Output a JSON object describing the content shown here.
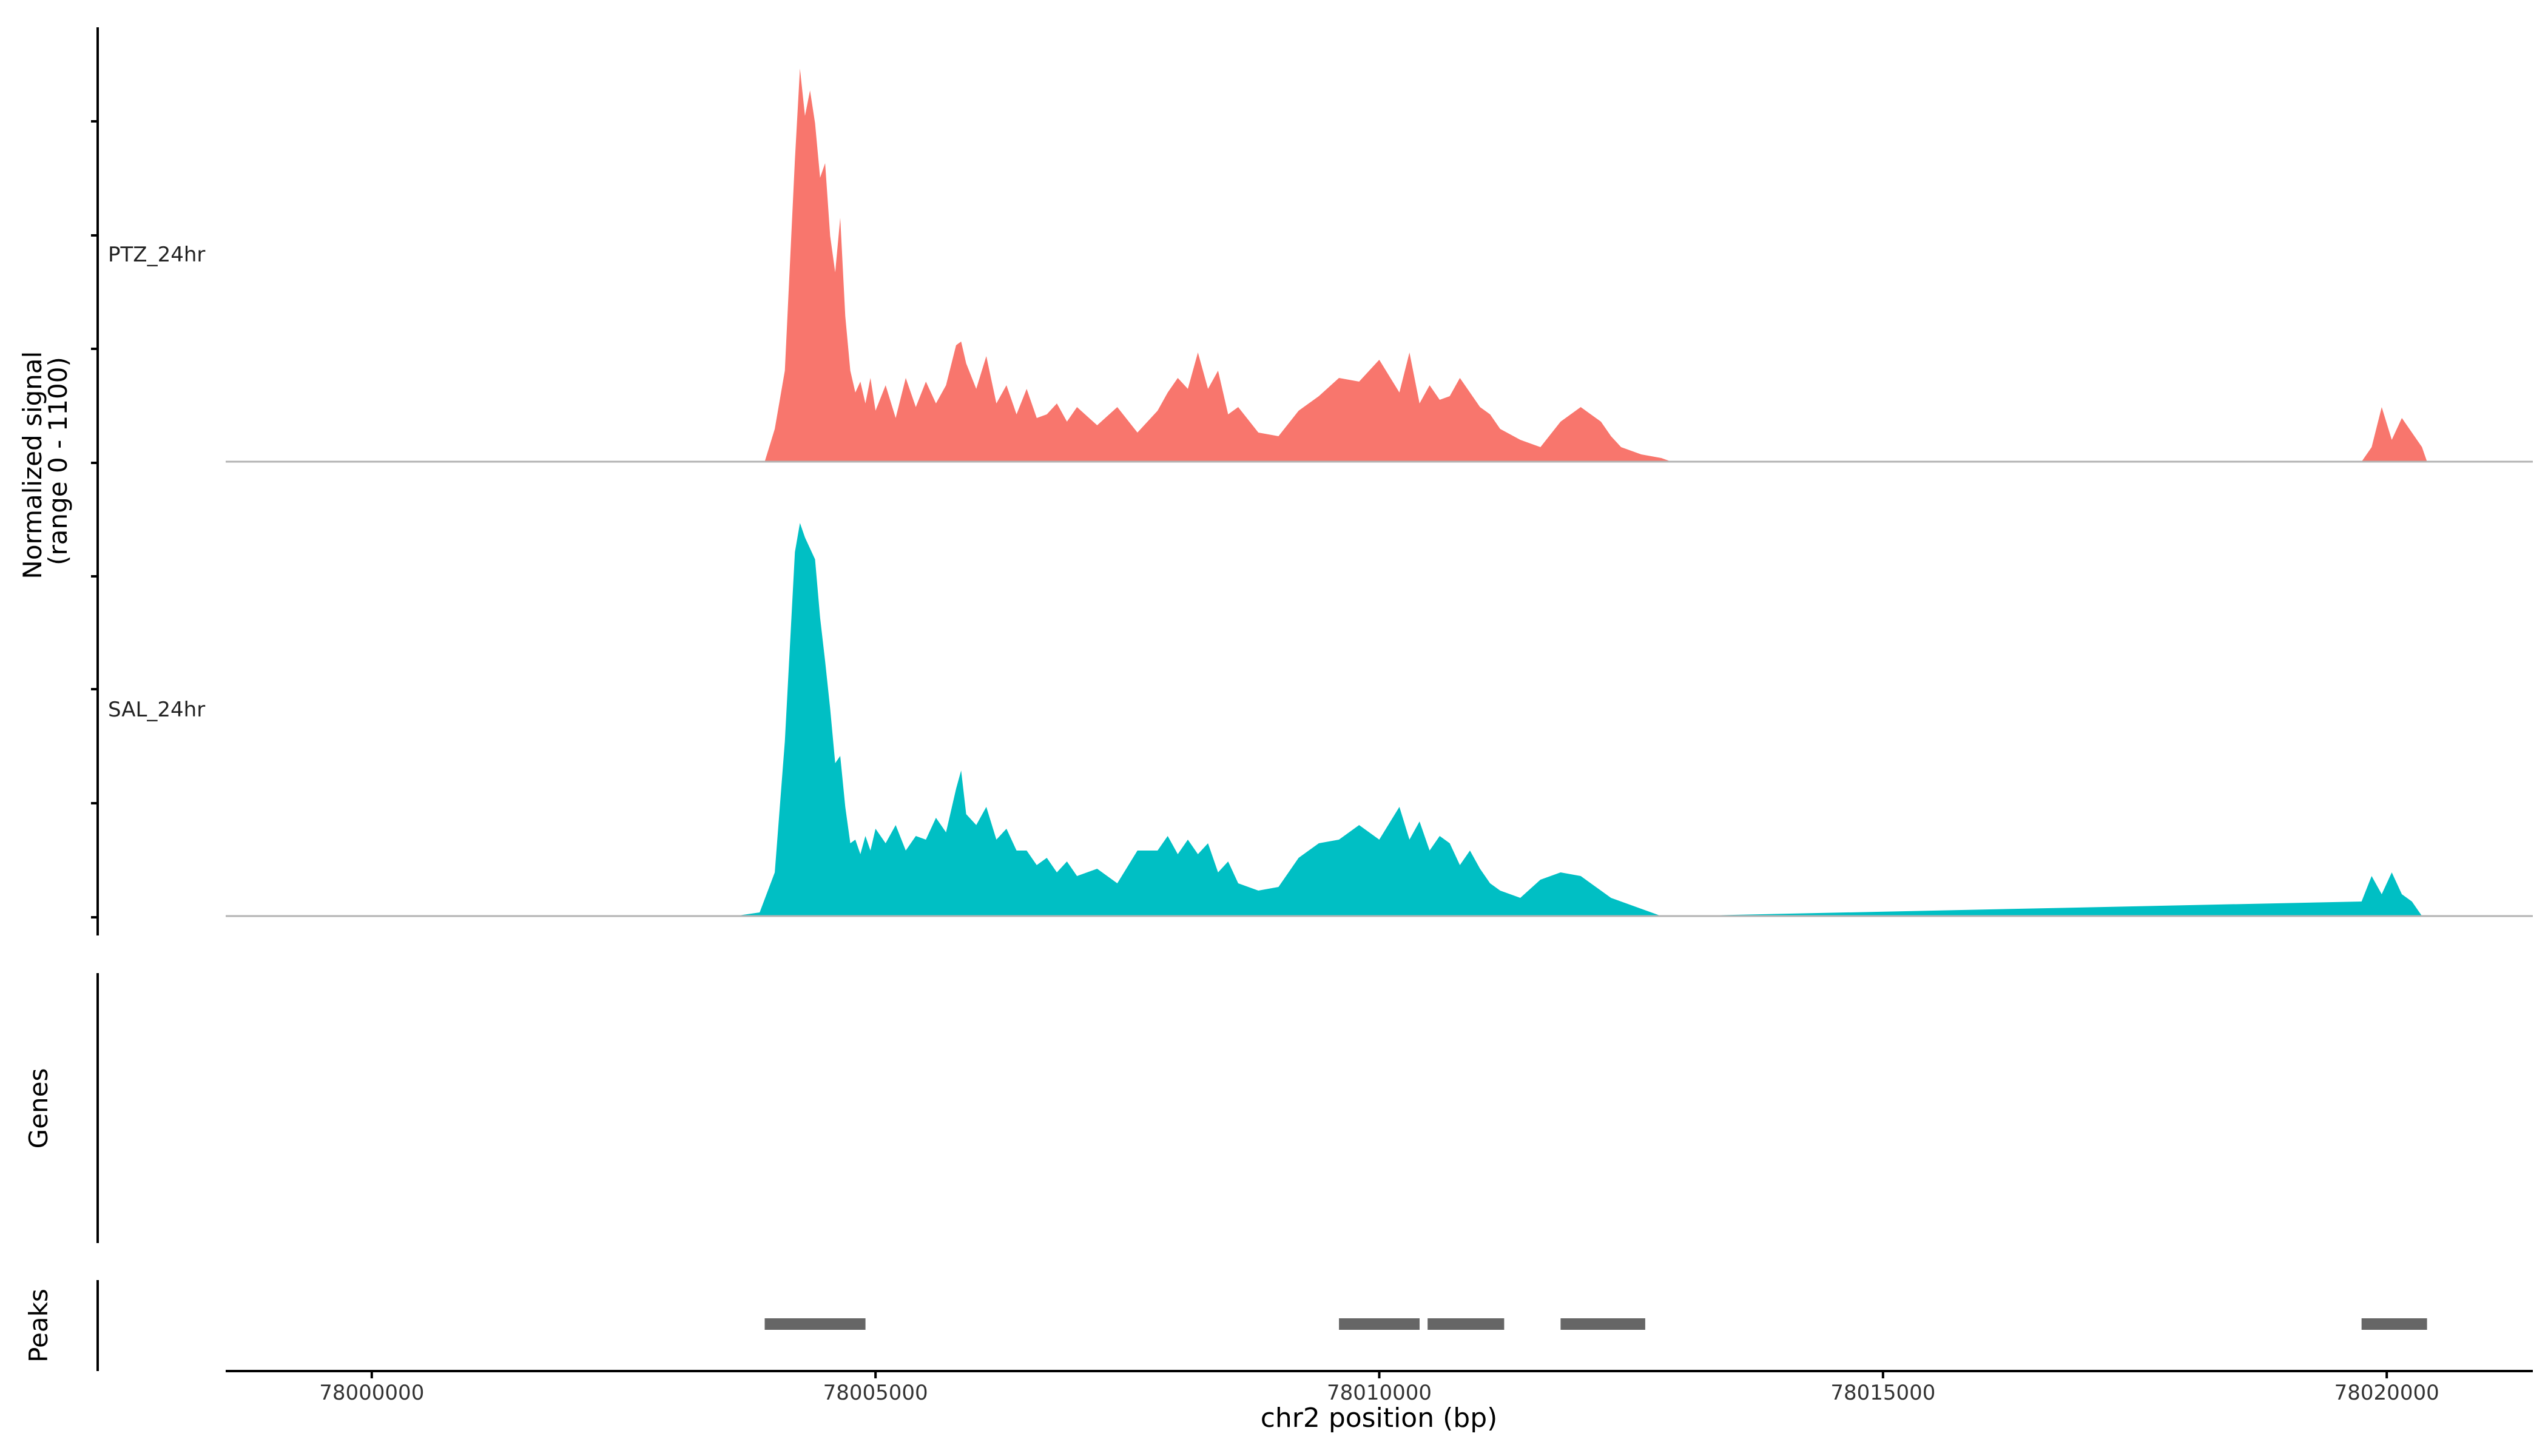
{
  "chart_data": {
    "type": "area",
    "title": "",
    "ylabel_line1": "Normalized signal",
    "ylabel_line2": "(range 0 - 1100)",
    "xlabel": "chr2 position (bp)",
    "xlim": [
      77998550,
      78021450
    ],
    "ylim": [
      0,
      1100
    ],
    "x_ticks": [
      78000000,
      78005000,
      78010000,
      78015000,
      78020000
    ],
    "x_tick_labels": [
      "78000000",
      "78005000",
      "78010000",
      "78015000",
      "78020000"
    ],
    "grid": false,
    "legend": "none",
    "series": [
      {
        "name": "PTZ_24hr",
        "color": "#F8766D",
        "x": [
          78003900,
          78004000,
          78004100,
          78004200,
          78004250,
          78004300,
          78004350,
          78004400,
          78004450,
          78004500,
          78004550,
          78004600,
          78004650,
          78004700,
          78004750,
          78004800,
          78004850,
          78004900,
          78004950,
          78005000,
          78005100,
          78005200,
          78005300,
          78005400,
          78005500,
          78005600,
          78005700,
          78005800,
          78005850,
          78005900,
          78006000,
          78006100,
          78006200,
          78006300,
          78006400,
          78006500,
          78006600,
          78006700,
          78006800,
          78006900,
          78007000,
          78007200,
          78007400,
          78007600,
          78007800,
          78007900,
          78008000,
          78008100,
          78008200,
          78008300,
          78008400,
          78008500,
          78008600,
          78008800,
          78009000,
          78009200,
          78009400,
          78009600,
          78009800,
          78010000,
          78010200,
          78010300,
          78010400,
          78010500,
          78010600,
          78010700,
          78010800,
          78010900,
          78011000,
          78011100,
          78011200,
          78011400,
          78011600,
          78011800,
          78012000,
          78012100,
          78012200,
          78012300,
          78012400,
          78012600,
          78012800,
          78012900,
          78019750,
          78019850,
          78019950,
          78020050,
          78020150,
          78020250,
          78020350,
          78020400
        ],
        "values": [
          0,
          90,
          250,
          830,
          1080,
          950,
          1020,
          930,
          780,
          820,
          620,
          520,
          670,
          400,
          250,
          190,
          220,
          160,
          230,
          140,
          210,
          120,
          230,
          150,
          220,
          160,
          210,
          320,
          330,
          270,
          200,
          290,
          160,
          210,
          130,
          200,
          120,
          130,
          160,
          110,
          150,
          100,
          150,
          80,
          140,
          190,
          230,
          200,
          300,
          200,
          250,
          130,
          150,
          80,
          70,
          140,
          180,
          230,
          220,
          280,
          190,
          300,
          160,
          210,
          170,
          180,
          230,
          190,
          150,
          130,
          90,
          60,
          40,
          110,
          150,
          130,
          110,
          70,
          40,
          20,
          10,
          0,
          0,
          40,
          150,
          60,
          120,
          80,
          40,
          0
        ]
      },
      {
        "name": "SAL_24hr",
        "color": "#00BFC4",
        "x": [
          78003600,
          78003850,
          78004000,
          78004100,
          78004200,
          78004250,
          78004300,
          78004350,
          78004400,
          78004450,
          78004500,
          78004550,
          78004600,
          78004650,
          78004700,
          78004750,
          78004800,
          78004850,
          78004900,
          78004950,
          78005000,
          78005100,
          78005200,
          78005300,
          78005400,
          78005500,
          78005600,
          78005700,
          78005800,
          78005850,
          78005900,
          78006000,
          78006100,
          78006200,
          78006300,
          78006400,
          78006500,
          78006600,
          78006700,
          78006800,
          78006900,
          78007000,
          78007200,
          78007400,
          78007600,
          78007800,
          78007900,
          78008000,
          78008100,
          78008200,
          78008300,
          78008400,
          78008500,
          78008600,
          78008800,
          78009000,
          78009200,
          78009400,
          78009600,
          78009800,
          78010000,
          78010200,
          78010300,
          78010400,
          78010500,
          78010600,
          78010700,
          78010800,
          78010900,
          78011000,
          78011100,
          78011200,
          78011400,
          78011600,
          78011800,
          78012000,
          78012100,
          78012200,
          78012300,
          78012400,
          78012600,
          78012800,
          78012950,
          78019750,
          78019850,
          78019950,
          78020050,
          78020150,
          78020250,
          78020350,
          78020400
        ],
        "values": [
          0,
          10,
          120,
          480,
          1000,
          1080,
          1040,
          1010,
          980,
          820,
          700,
          570,
          420,
          440,
          300,
          200,
          210,
          170,
          220,
          180,
          240,
          200,
          250,
          180,
          220,
          210,
          270,
          230,
          350,
          400,
          280,
          250,
          300,
          210,
          240,
          180,
          180,
          140,
          160,
          120,
          150,
          110,
          130,
          90,
          180,
          180,
          220,
          170,
          210,
          170,
          200,
          120,
          150,
          90,
          70,
          80,
          160,
          200,
          210,
          250,
          210,
          300,
          210,
          260,
          180,
          220,
          200,
          140,
          180,
          130,
          90,
          70,
          50,
          100,
          120,
          110,
          90,
          70,
          50,
          40,
          20,
          0,
          0,
          40,
          110,
          60,
          120,
          60,
          40,
          0,
          0
        ]
      }
    ],
    "genes_track_label": "Genes",
    "peaks_track_label": "Peaks",
    "peaks_color": "#666666",
    "peaks": [
      {
        "start": 78003900,
        "end": 78004900
      },
      {
        "start": 78009600,
        "end": 78010400
      },
      {
        "start": 78010480,
        "end": 78011240
      },
      {
        "start": 78011800,
        "end": 78012640
      },
      {
        "start": 78019750,
        "end": 78020400
      }
    ]
  }
}
